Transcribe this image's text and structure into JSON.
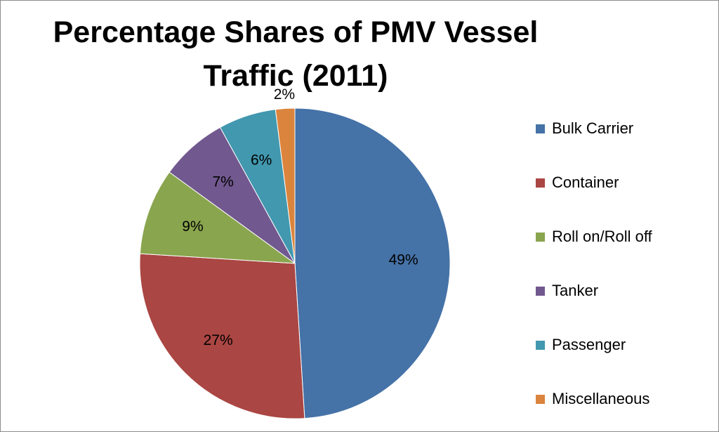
{
  "chart_data": {
    "type": "pie",
    "title": "Percentage Shares of PMV Vessel Traffic (2011)",
    "title_lines": [
      "Percentage Shares of PMV Vessel",
      "Traffic (2011)"
    ],
    "legend_position": "right",
    "slices": [
      {
        "name": "Bulk Carrier",
        "value": 49,
        "label": "49%",
        "color": "#4572A7"
      },
      {
        "name": "Container",
        "value": 27,
        "label": "27%",
        "color": "#AA4643"
      },
      {
        "name": "Roll on/Roll off",
        "value": 9,
        "label": "9%",
        "color": "#89A54E"
      },
      {
        "name": "Tanker",
        "value": 7,
        "label": "7%",
        "color": "#71588F"
      },
      {
        "name": "Passenger",
        "value": 6,
        "label": "6%",
        "color": "#4198AF"
      },
      {
        "name": "Miscellaneous",
        "value": 2,
        "label": "2%",
        "color": "#DB843D"
      }
    ]
  }
}
